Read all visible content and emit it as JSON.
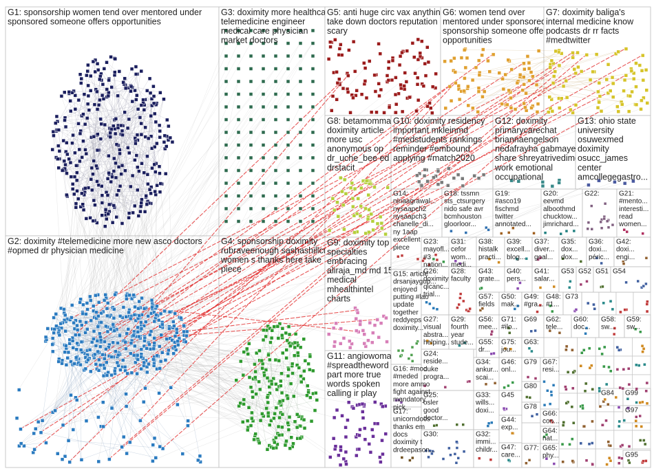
{
  "groups": [
    {
      "label": [
        "G1: sponsorship women tend over mentored under",
        "sponsored someone offers opportunities"
      ]
    },
    {
      "label": [
        "G2: doximity #telemedicine more new asco doctors",
        "#opmed dr physician medicine"
      ]
    },
    {
      "label": [
        "G3: doximity more healthcare",
        "telemedicine engineer",
        "medical care physician",
        "market doctors"
      ]
    },
    {
      "label": [
        "G4: sponsorship doximity",
        "rubraveenough sashashillcutt",
        "women s thanks here take",
        "piece"
      ]
    },
    {
      "label": [
        "G5: anti huge circ vax anything",
        "take down doctors reputation",
        "scary"
      ]
    },
    {
      "label": [
        "G6: women tend over",
        "mentored under sponsored",
        "sponsorship someone offers",
        "opportunities"
      ]
    },
    {
      "label": [
        "G7: doximity baliga's",
        "internal medicine know",
        "podcasts dr rr facts",
        "#medtwitter"
      ]
    },
    {
      "label": [
        "G8: betamomma",
        "doximity article",
        "more usc",
        "anonymous op",
        "dr_uche_bee ed",
        "drstacit"
      ]
    },
    {
      "label": [
        "G9: doximity top",
        "specialties",
        "embracing",
        "aliraja_md md 15",
        "medical",
        "mhealthintel",
        "charts"
      ]
    },
    {
      "label": [
        "G10: doximity residency",
        "important mkleinmd",
        "#medstudents rankings",
        "reminder #embound",
        "applying #match2020"
      ]
    },
    {
      "label": [
        "G11: angiowoman",
        "#spreadtheword",
        "part more true",
        "words spoken",
        "calling ir play"
      ]
    },
    {
      "label": [
        "G12: doximity",
        "primarycarechat",
        "briannaengelson",
        "nedafrayha gabmayer",
        "share shreyatrivedimd",
        "work emotional",
        "occupational"
      ]
    },
    {
      "label": [
        "G13: ohio state",
        "university",
        "osuwexmed",
        "doximity",
        "osucc_james",
        "center",
        "amcollegegastro..."
      ]
    },
    {
      "label": [
        "G14:",
        "ninaagrawal...",
        "nysaapch2",
        "nysaapch3",
        "chanelle_di...",
        "ny 1aap",
        "excellent",
        "piece"
      ]
    },
    {
      "label": [
        "G15: article",
        "drsanjaygup...",
        "enjoyed",
        "putting #lao",
        "update",
        "together",
        "reddyeps",
        "doximity..."
      ]
    },
    {
      "label": [
        "G16: #moc",
        "#meded",
        "more ammo",
        "fight against",
        "mandatory",
        "pick..."
      ]
    },
    {
      "label": [
        "G17:",
        "unicorndocs",
        "thanks em",
        "docs",
        "doximity t",
        "drdeepason..."
      ]
    },
    {
      "label": [
        "G18: tssmn",
        "sts_ctsurgery",
        "nido safe avr",
        "bcmhouston",
        "gloorloor..."
      ]
    },
    {
      "label": [
        "G19:",
        "#asco19",
        "fischmd",
        "twitter",
        "annotated..."
      ]
    },
    {
      "label": [
        "G20:",
        "eevmd",
        "alboothmd",
        "chucktow...",
        "jimrichard..."
      ]
    },
    {
      "label": [
        "G22:"
      ]
    },
    {
      "label": [
        "G21:",
        "#mento...",
        "interesti...",
        "read",
        "women..."
      ]
    },
    {
      "label": [
        "G23:",
        "mayofl...",
        "#3",
        "nation..."
      ]
    },
    {
      "label": [
        "G31:",
        "cefor",
        "wom...",
        "medi..."
      ]
    },
    {
      "label": [
        "G38:",
        "histalk",
        "practi..."
      ]
    },
    {
      "label": [
        "G39:",
        "excell...",
        "blog..."
      ]
    },
    {
      "label": [
        "G37:",
        "diver...",
        "goal..."
      ]
    },
    {
      "label": [
        "G35:",
        "dox...",
        "dox..."
      ]
    },
    {
      "label": [
        "G36:",
        "doxi...",
        "péric..."
      ]
    },
    {
      "label": [
        "G42:",
        "doxi...",
        "engi..."
      ]
    },
    {
      "label": [
        "G26:",
        "doximity",
        "qicanc...",
        "trial..."
      ]
    },
    {
      "label": [
        "G28:",
        "faculty"
      ]
    },
    {
      "label": [
        "G43:",
        "grate..."
      ]
    },
    {
      "label": [
        "G40:",
        "pers..."
      ]
    },
    {
      "label": [
        "G41:",
        "salar..."
      ]
    },
    {
      "label": [
        "G53"
      ]
    },
    {
      "label": [
        "G52"
      ]
    },
    {
      "label": [
        "G51"
      ]
    },
    {
      "label": [
        "G54"
      ]
    },
    {
      "label": [
        "G57:",
        "fields"
      ]
    },
    {
      "label": [
        "G50:",
        "mak..."
      ]
    },
    {
      "label": [
        "G49:",
        "#gra..."
      ]
    },
    {
      "label": [
        "G48:",
        "#1..."
      ]
    },
    {
      "label": [
        "G73"
      ]
    },
    {
      "label": [
        "G27:",
        "visual",
        "abstra...",
        "helping..."
      ]
    },
    {
      "label": [
        "G29:",
        "fourth",
        "year",
        "stude..."
      ]
    },
    {
      "label": [
        "G56:",
        "mee..."
      ]
    },
    {
      "label": [
        "G71:",
        "#ilo..."
      ]
    },
    {
      "label": [
        "G69"
      ]
    },
    {
      "label": [
        "G62:",
        "tele..."
      ]
    },
    {
      "label": [
        "G60:",
        "doc..."
      ]
    },
    {
      "label": [
        "G58:",
        "sw..."
      ]
    },
    {
      "label": [
        "G59:",
        "sw..."
      ]
    },
    {
      "label": [
        "G55:",
        "dr..."
      ]
    },
    {
      "label": [
        "G75:",
        "jou..."
      ]
    },
    {
      "label": [
        "G63:"
      ]
    },
    {
      "label": [
        "G24:",
        "reside...",
        "duke",
        "progra..."
      ]
    },
    {
      "label": [
        "G25:",
        "osler",
        "good",
        "doctor..."
      ]
    },
    {
      "label": [
        "G30:"
      ]
    },
    {
      "label": [
        "G34:",
        "ankur...",
        "scai..."
      ]
    },
    {
      "label": [
        "G33:",
        "wills...",
        "doxi..."
      ]
    },
    {
      "label": [
        "G32:",
        "immi...",
        "childr..."
      ]
    },
    {
      "label": [
        "G46:",
        "onl..."
      ]
    },
    {
      "label": [
        "G45"
      ]
    },
    {
      "label": [
        "G44:",
        "exp..."
      ]
    },
    {
      "label": [
        "G47:",
        "care..."
      ]
    },
    {
      "label": [
        "G79"
      ]
    },
    {
      "label": [
        "G80"
      ]
    },
    {
      "label": [
        "G78"
      ]
    },
    {
      "label": [
        "G77:"
      ]
    },
    {
      "label": [
        "G67:",
        "resi..."
      ]
    },
    {
      "label": [
        "G66:",
        "con..."
      ]
    },
    {
      "label": [
        "G64:",
        "nat..."
      ]
    },
    {
      "label": [
        "G65:",
        "phy..."
      ]
    },
    {
      "label": [
        "G84"
      ]
    },
    {
      "label": [
        "G99"
      ]
    },
    {
      "label": [
        "G97"
      ]
    },
    {
      "label": [
        "G95"
      ]
    }
  ]
}
